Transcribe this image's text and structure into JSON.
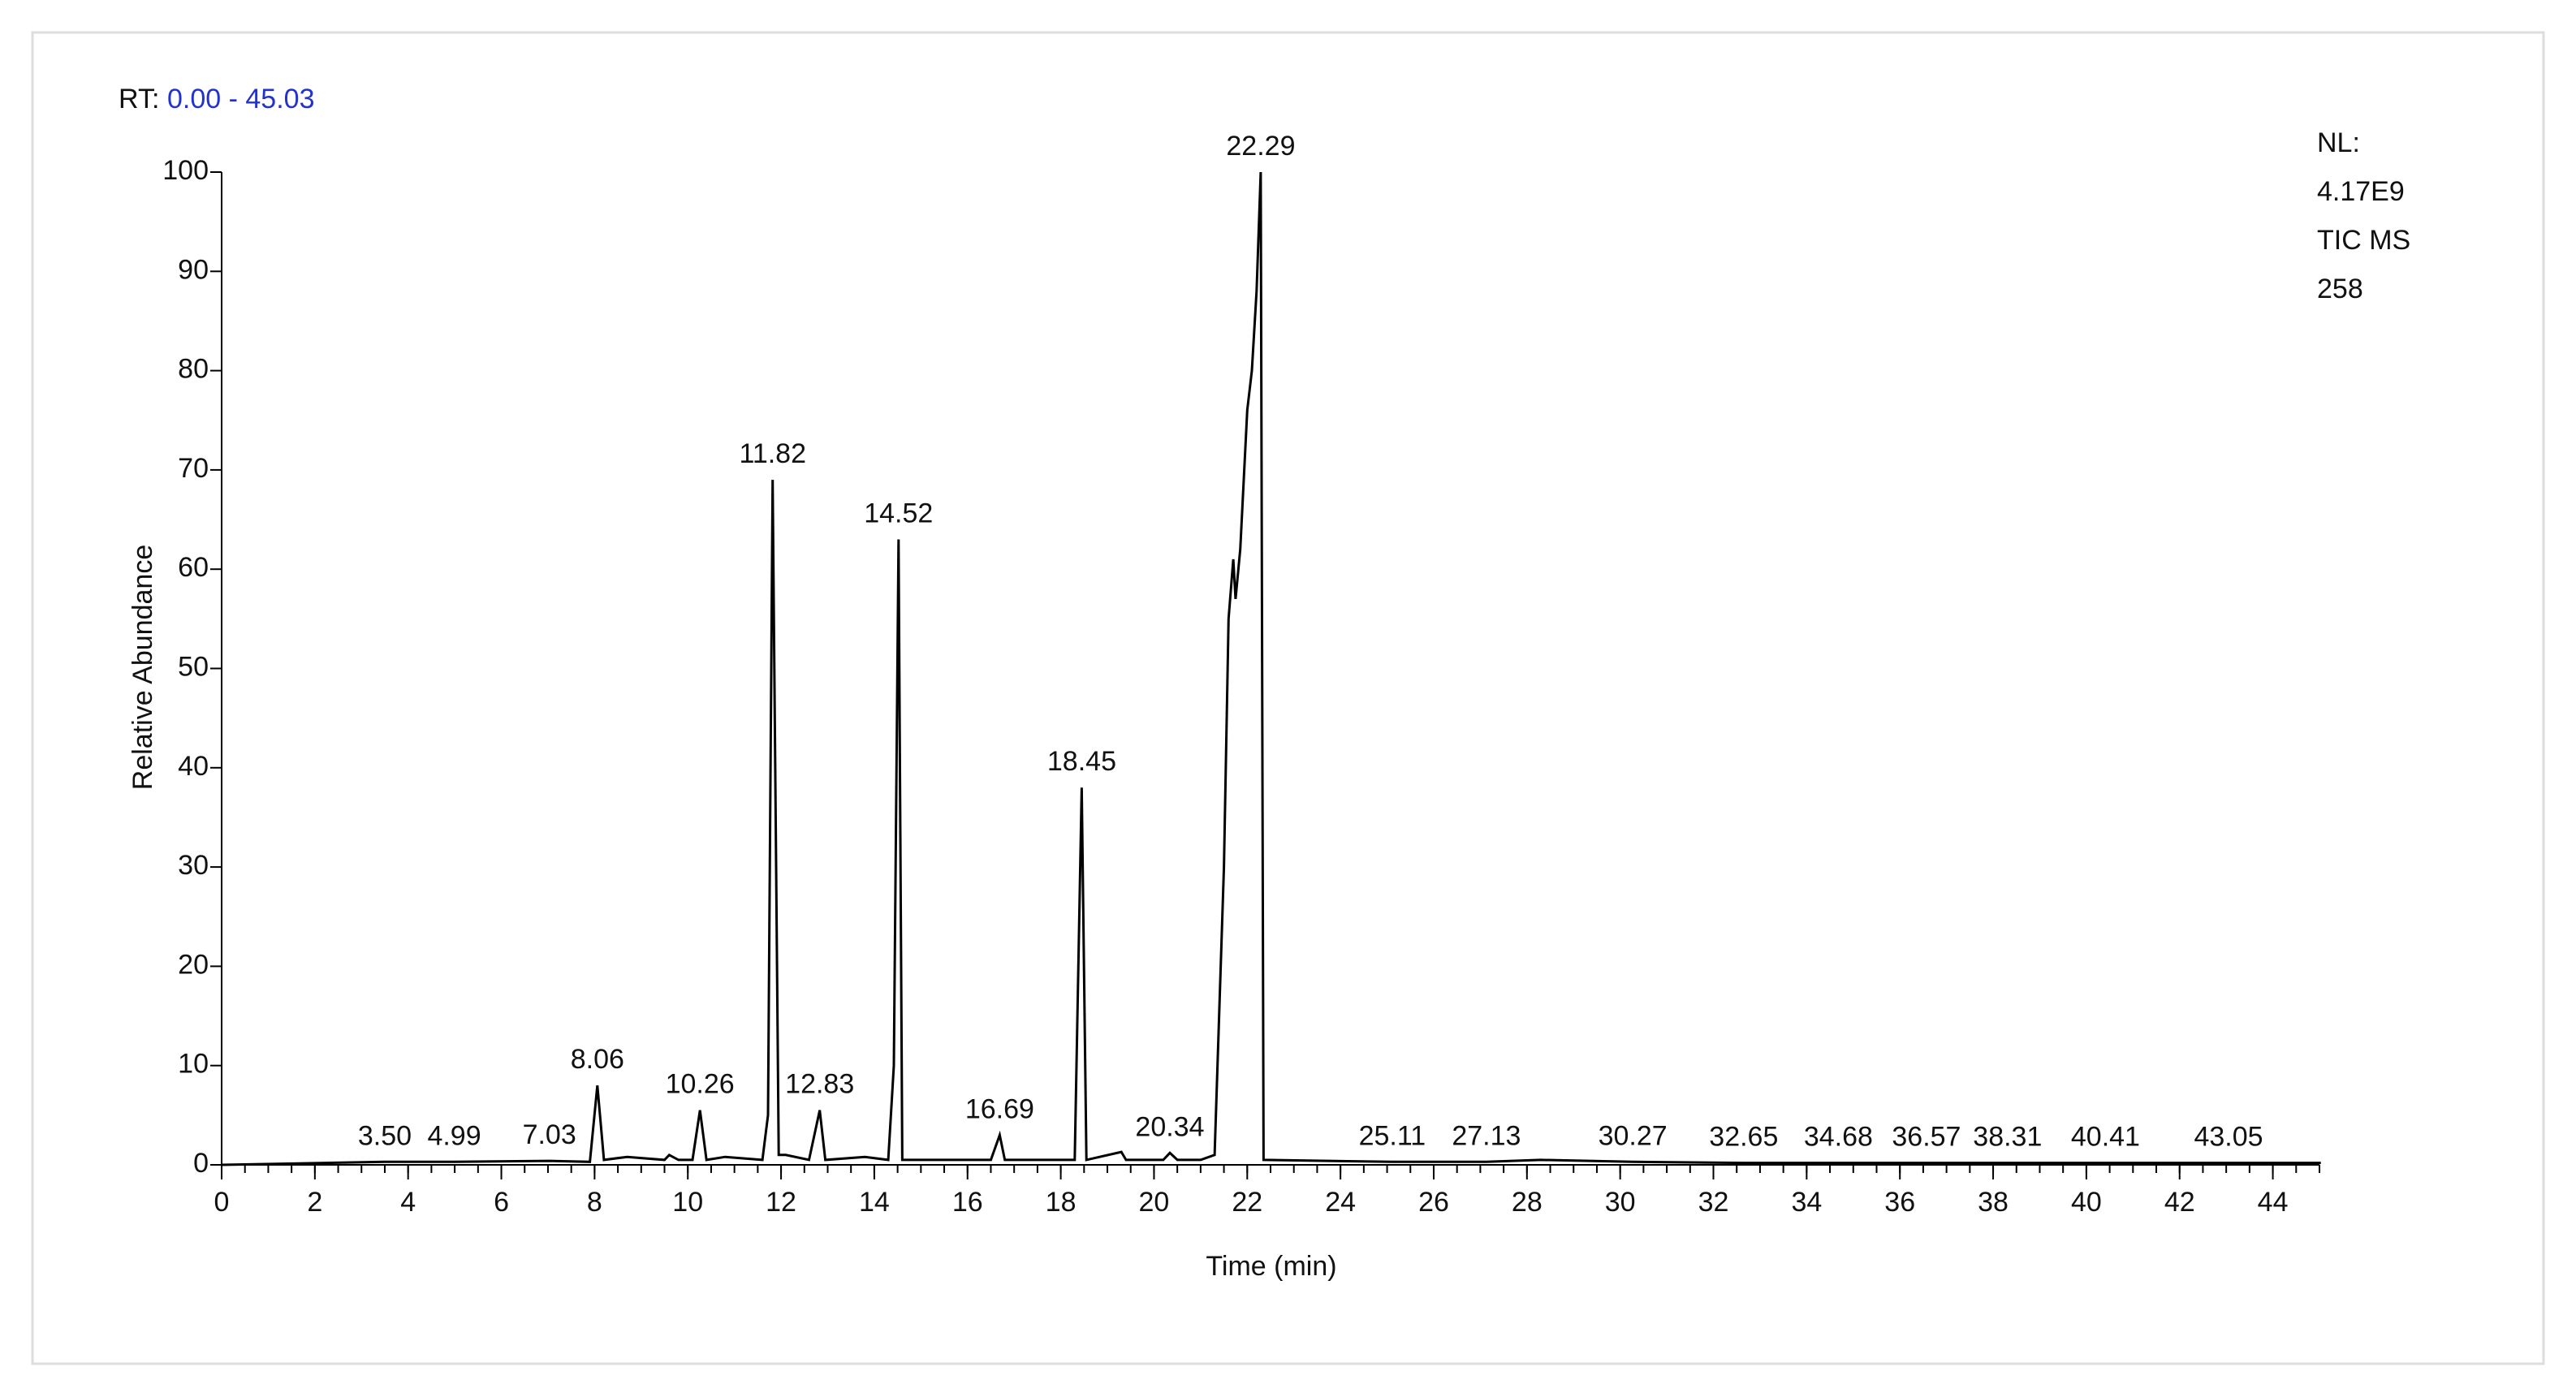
{
  "chart_data": {
    "type": "line",
    "range_label": "RT:",
    "range_value": "0.00 - 45.03",
    "info": [
      "NL:",
      "4.17E9",
      "TIC  MS",
      "258"
    ],
    "xlabel": "Time (min)",
    "ylabel": "Relative Abundance",
    "xlim": [
      0,
      45
    ],
    "ylim": [
      0,
      100
    ],
    "xticks": [
      0,
      2,
      4,
      6,
      8,
      10,
      12,
      14,
      16,
      18,
      20,
      22,
      24,
      26,
      28,
      30,
      32,
      34,
      36,
      38,
      40,
      42,
      44
    ],
    "yticks": [
      0,
      10,
      20,
      30,
      40,
      50,
      60,
      70,
      80,
      90,
      100
    ],
    "color": "#000000",
    "range_color": "#2233cc",
    "x": [
      0,
      3.5,
      4.99,
      7.03,
      7.9,
      8.06,
      8.2,
      8.7,
      9.5,
      9.6,
      9.8,
      10.1,
      10.26,
      10.4,
      10.8,
      11.6,
      11.72,
      11.82,
      11.95,
      12.1,
      12.6,
      12.83,
      12.95,
      13.8,
      14.3,
      14.42,
      14.52,
      14.6,
      16.5,
      16.69,
      16.8,
      17.9,
      18.3,
      18.45,
      18.55,
      19.3,
      19.4,
      20.2,
      20.34,
      20.5,
      21.0,
      21.3,
      21.5,
      21.6,
      21.7,
      21.75,
      21.85,
      22.0,
      22.1,
      22.2,
      22.29,
      22.35,
      25.11,
      27.13,
      28.3,
      30.27,
      32.65,
      34.68,
      36.57,
      38.31,
      40.41,
      43.05,
      45.03
    ],
    "values": [
      0,
      0.3,
      0.3,
      0.4,
      0.3,
      8,
      0.5,
      0.8,
      0.5,
      1,
      0.5,
      0.5,
      5.5,
      0.5,
      0.8,
      0.5,
      5,
      69,
      1,
      1,
      0.5,
      5.5,
      0.5,
      0.8,
      0.5,
      10,
      63,
      0.5,
      0.5,
      3,
      0.5,
      0.5,
      0.5,
      38,
      0.5,
      1.3,
      0.5,
      0.5,
      1.2,
      0.5,
      0.5,
      1,
      30,
      55,
      61,
      57,
      62,
      76,
      80,
      88,
      100,
      0.5,
      0.3,
      0.3,
      0.5,
      0.3,
      0.2,
      0.2,
      0.2,
      0.2,
      0.2,
      0.2,
      0.2
    ],
    "peaks": {
      "x": [
        3.5,
        4.99,
        7.03,
        8.06,
        10.26,
        11.82,
        12.83,
        14.52,
        16.69,
        18.45,
        20.34,
        22.29,
        25.11,
        27.13,
        30.27,
        32.65,
        34.68,
        36.57,
        38.31,
        40.41,
        43.05
      ],
      "y": [
        0.3,
        0.3,
        0.4,
        8,
        5.5,
        69,
        5.5,
        63,
        3,
        38,
        1.2,
        100,
        0.3,
        0.3,
        0.3,
        0.2,
        0.2,
        0.2,
        0.2,
        0.2,
        0.2
      ],
      "labels": [
        "3.50",
        "4.99",
        "7.03",
        "8.06",
        "10.26",
        "11.82",
        "12.83",
        "14.52",
        "16.69",
        "18.45",
        "20.34",
        "22.29",
        "25.11",
        "27.13",
        "30.27",
        "32.65",
        "34.68",
        "36.57",
        "38.31",
        "40.41",
        "43.05"
      ]
    }
  }
}
